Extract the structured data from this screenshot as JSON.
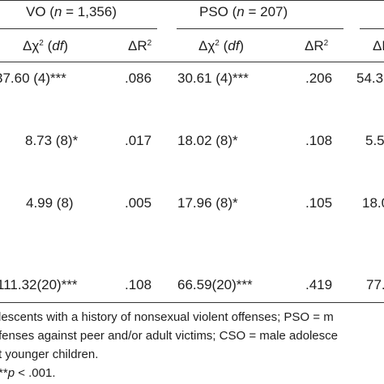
{
  "table": {
    "groups": {
      "vo": {
        "prefix": "VO (",
        "n_label": "n",
        "suffix": " = 1,356)"
      },
      "pso": {
        "prefix": "PSO (",
        "n_label": "n",
        "suffix": " = 207)"
      }
    },
    "subheaders": {
      "chi_symbol": "Δχ",
      "chi_sup": "2",
      "open_paren": " (",
      "df": "df",
      "close_paren": ")",
      "r_symbol": "ΔR",
      "r_sup": "2"
    },
    "rows": [
      {
        "vo_chi": "37.60 (4)***",
        "vo_r": ".086",
        "pso_chi": "30.61 (4)***",
        "pso_r": ".206",
        "cso_chi": "54.3"
      },
      {
        "vo_chi": "8.73 (8)*",
        "vo_r": ".017",
        "pso_chi": "18.02 (8)*",
        "pso_r": ".108",
        "cso_chi": "5.5"
      },
      {
        "vo_chi": "4.99 (8)",
        "vo_r": ".005",
        "pso_chi": "17.96 (8)*",
        "pso_r": ".105",
        "cso_chi": "18.0"
      },
      {
        "vo_chi": "111.32(20)***",
        "vo_r": ".108",
        "pso_chi": "66.59(20)***",
        "pso_r": ".419",
        "cso_chi": "77."
      }
    ]
  },
  "notes": {
    "line1": "lescents with a history of nonsexual violent offenses; PSO = m",
    "line2": "fenses against peer and/or adult victims; CSO = male adolesce",
    "line3": "t younger children.",
    "line4_prefix": "**",
    "line4_p": "p",
    "line4_suffix": " < .001."
  }
}
